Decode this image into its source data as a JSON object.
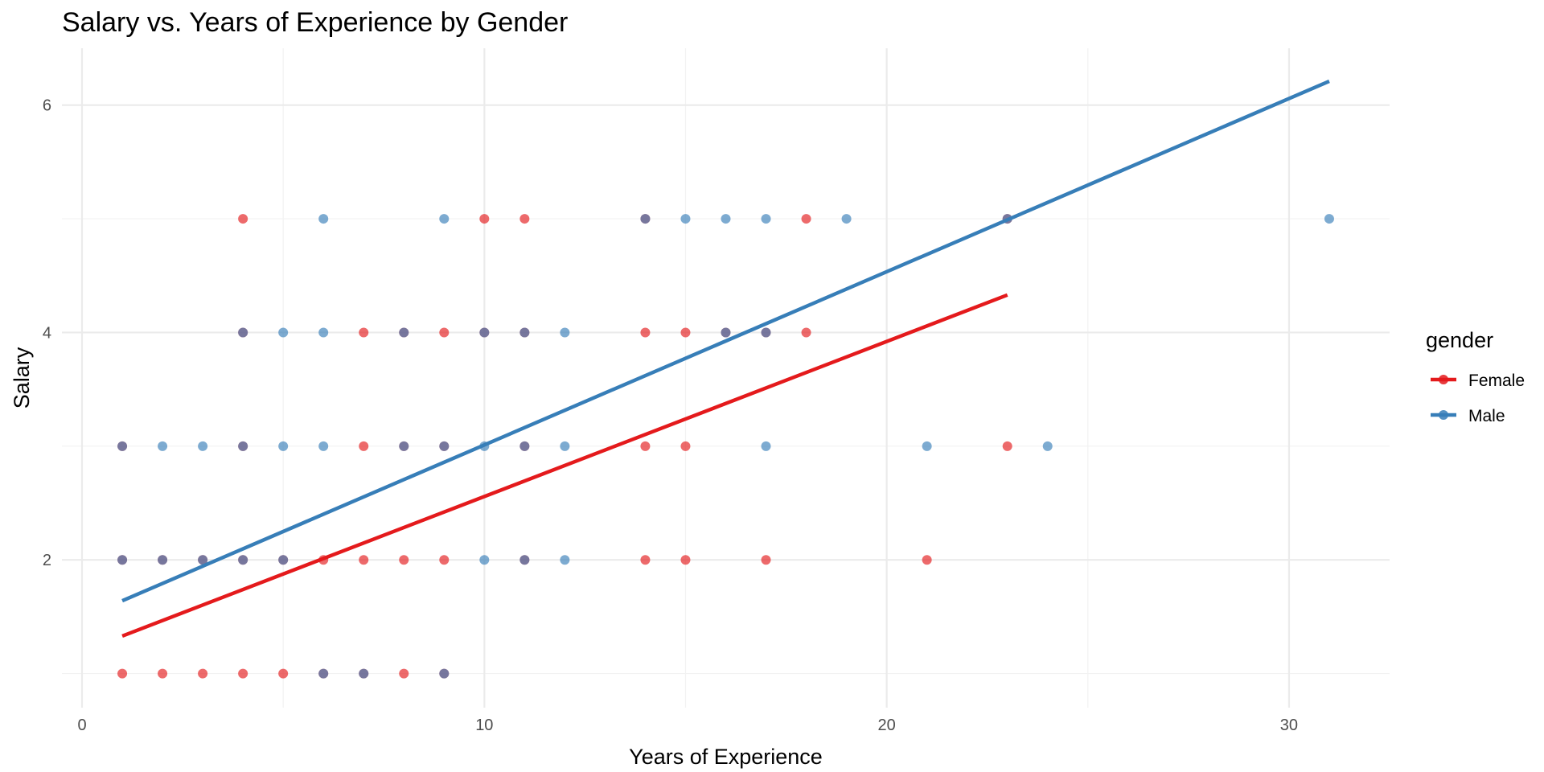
{
  "chart_data": {
    "type": "scatter",
    "title": "Salary vs. Years of Experience by Gender",
    "xlabel": "Years of Experience",
    "ylabel": "Salary",
    "xlim": [
      -0.5,
      32.5
    ],
    "ylim": [
      0.7,
      6.5
    ],
    "x_ticks": [
      0,
      10,
      20,
      30
    ],
    "y_ticks": [
      2,
      4,
      6
    ],
    "grid": true,
    "legend": {
      "title": "gender",
      "placement": "right",
      "entries": [
        {
          "label": "Female",
          "color": "#e41a1c"
        },
        {
          "label": "Male",
          "color": "#377eb8"
        }
      ]
    },
    "series": [
      {
        "name": "Female",
        "color": "#e41a1c",
        "points": [
          [
            1,
            1
          ],
          [
            2,
            1
          ],
          [
            3,
            1
          ],
          [
            4,
            1
          ],
          [
            5,
            1
          ],
          [
            6,
            1
          ],
          [
            7,
            1
          ],
          [
            8,
            1
          ],
          [
            9,
            1
          ],
          [
            1,
            2
          ],
          [
            2,
            2
          ],
          [
            3,
            2
          ],
          [
            4,
            2
          ],
          [
            5,
            2
          ],
          [
            6,
            2
          ],
          [
            7,
            2
          ],
          [
            8,
            2
          ],
          [
            9,
            2
          ],
          [
            11,
            2
          ],
          [
            14,
            2
          ],
          [
            15,
            2
          ],
          [
            17,
            2
          ],
          [
            21,
            2
          ],
          [
            1,
            3
          ],
          [
            4,
            3
          ],
          [
            7,
            3
          ],
          [
            8,
            3
          ],
          [
            9,
            3
          ],
          [
            11,
            3
          ],
          [
            14,
            3
          ],
          [
            15,
            3
          ],
          [
            23,
            3
          ],
          [
            4,
            4
          ],
          [
            7,
            4
          ],
          [
            8,
            4
          ],
          [
            9,
            4
          ],
          [
            10,
            4
          ],
          [
            11,
            4
          ],
          [
            14,
            4
          ],
          [
            15,
            4
          ],
          [
            16,
            4
          ],
          [
            17,
            4
          ],
          [
            18,
            4
          ],
          [
            4,
            5
          ],
          [
            10,
            5
          ],
          [
            11,
            5
          ],
          [
            14,
            5
          ],
          [
            18,
            5
          ],
          [
            23,
            5
          ]
        ],
        "trend": {
          "x": [
            1,
            23
          ],
          "y": [
            1.33,
            4.33
          ]
        }
      },
      {
        "name": "Male",
        "color": "#377eb8",
        "points": [
          [
            6,
            1
          ],
          [
            7,
            1
          ],
          [
            9,
            1
          ],
          [
            1,
            2
          ],
          [
            2,
            2
          ],
          [
            3,
            2
          ],
          [
            4,
            2
          ],
          [
            5,
            2
          ],
          [
            10,
            2
          ],
          [
            11,
            2
          ],
          [
            12,
            2
          ],
          [
            1,
            3
          ],
          [
            2,
            3
          ],
          [
            3,
            3
          ],
          [
            4,
            3
          ],
          [
            5,
            3
          ],
          [
            6,
            3
          ],
          [
            8,
            3
          ],
          [
            9,
            3
          ],
          [
            10,
            3
          ],
          [
            11,
            3
          ],
          [
            12,
            3
          ],
          [
            17,
            3
          ],
          [
            21,
            3
          ],
          [
            24,
            3
          ],
          [
            4,
            4
          ],
          [
            5,
            4
          ],
          [
            6,
            4
          ],
          [
            8,
            4
          ],
          [
            10,
            4
          ],
          [
            11,
            4
          ],
          [
            12,
            4
          ],
          [
            16,
            4
          ],
          [
            17,
            4
          ],
          [
            6,
            5
          ],
          [
            9,
            5
          ],
          [
            14,
            5
          ],
          [
            15,
            5
          ],
          [
            16,
            5
          ],
          [
            17,
            5
          ],
          [
            19,
            5
          ],
          [
            23,
            5
          ],
          [
            31,
            5
          ]
        ],
        "trend": {
          "x": [
            1,
            31
          ],
          "y": [
            1.64,
            6.21
          ]
        }
      }
    ]
  }
}
